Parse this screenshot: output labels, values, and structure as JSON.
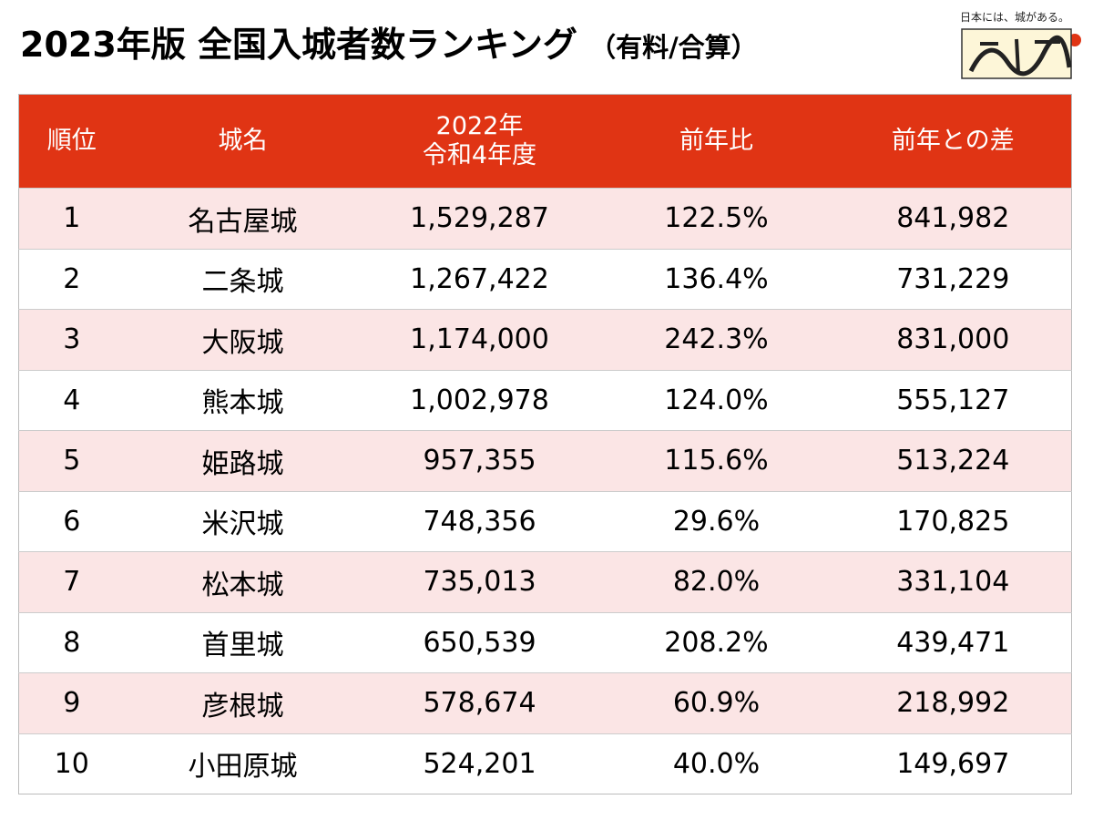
{
  "header": {
    "title": "2023年版 全国入城者数ランキング",
    "subtitle": "（有料/合算）",
    "logo_text": "日本には、城がある。"
  },
  "table": {
    "columns": [
      "順位",
      "城名",
      [
        "2022年",
        "令和4年度"
      ],
      "前年比",
      "前年との差"
    ],
    "rows": [
      [
        "1",
        "名古屋城",
        "1,529,287",
        "122.5%",
        "841,982"
      ],
      [
        "2",
        "二条城",
        "1,267,422",
        "136.4%",
        "731,229"
      ],
      [
        "3",
        "大阪城",
        "1,174,000",
        "242.3%",
        "831,000"
      ],
      [
        "4",
        "熊本城",
        "1,002,978",
        "124.0%",
        "555,127"
      ],
      [
        "5",
        "姫路城",
        "957,355",
        "115.6%",
        "513,224"
      ],
      [
        "6",
        "米沢城",
        "748,356",
        "29.6%",
        "170,825"
      ],
      [
        "7",
        "松本城",
        "735,013",
        "82.0%",
        "331,104"
      ],
      [
        "8",
        "首里城",
        "650,539",
        "208.2%",
        "439,471"
      ],
      [
        "9",
        "彦根城",
        "578,674",
        "60.9%",
        "218,992"
      ],
      [
        "10",
        "小田原城",
        "524,201",
        "40.0%",
        "149,697"
      ]
    ]
  }
}
